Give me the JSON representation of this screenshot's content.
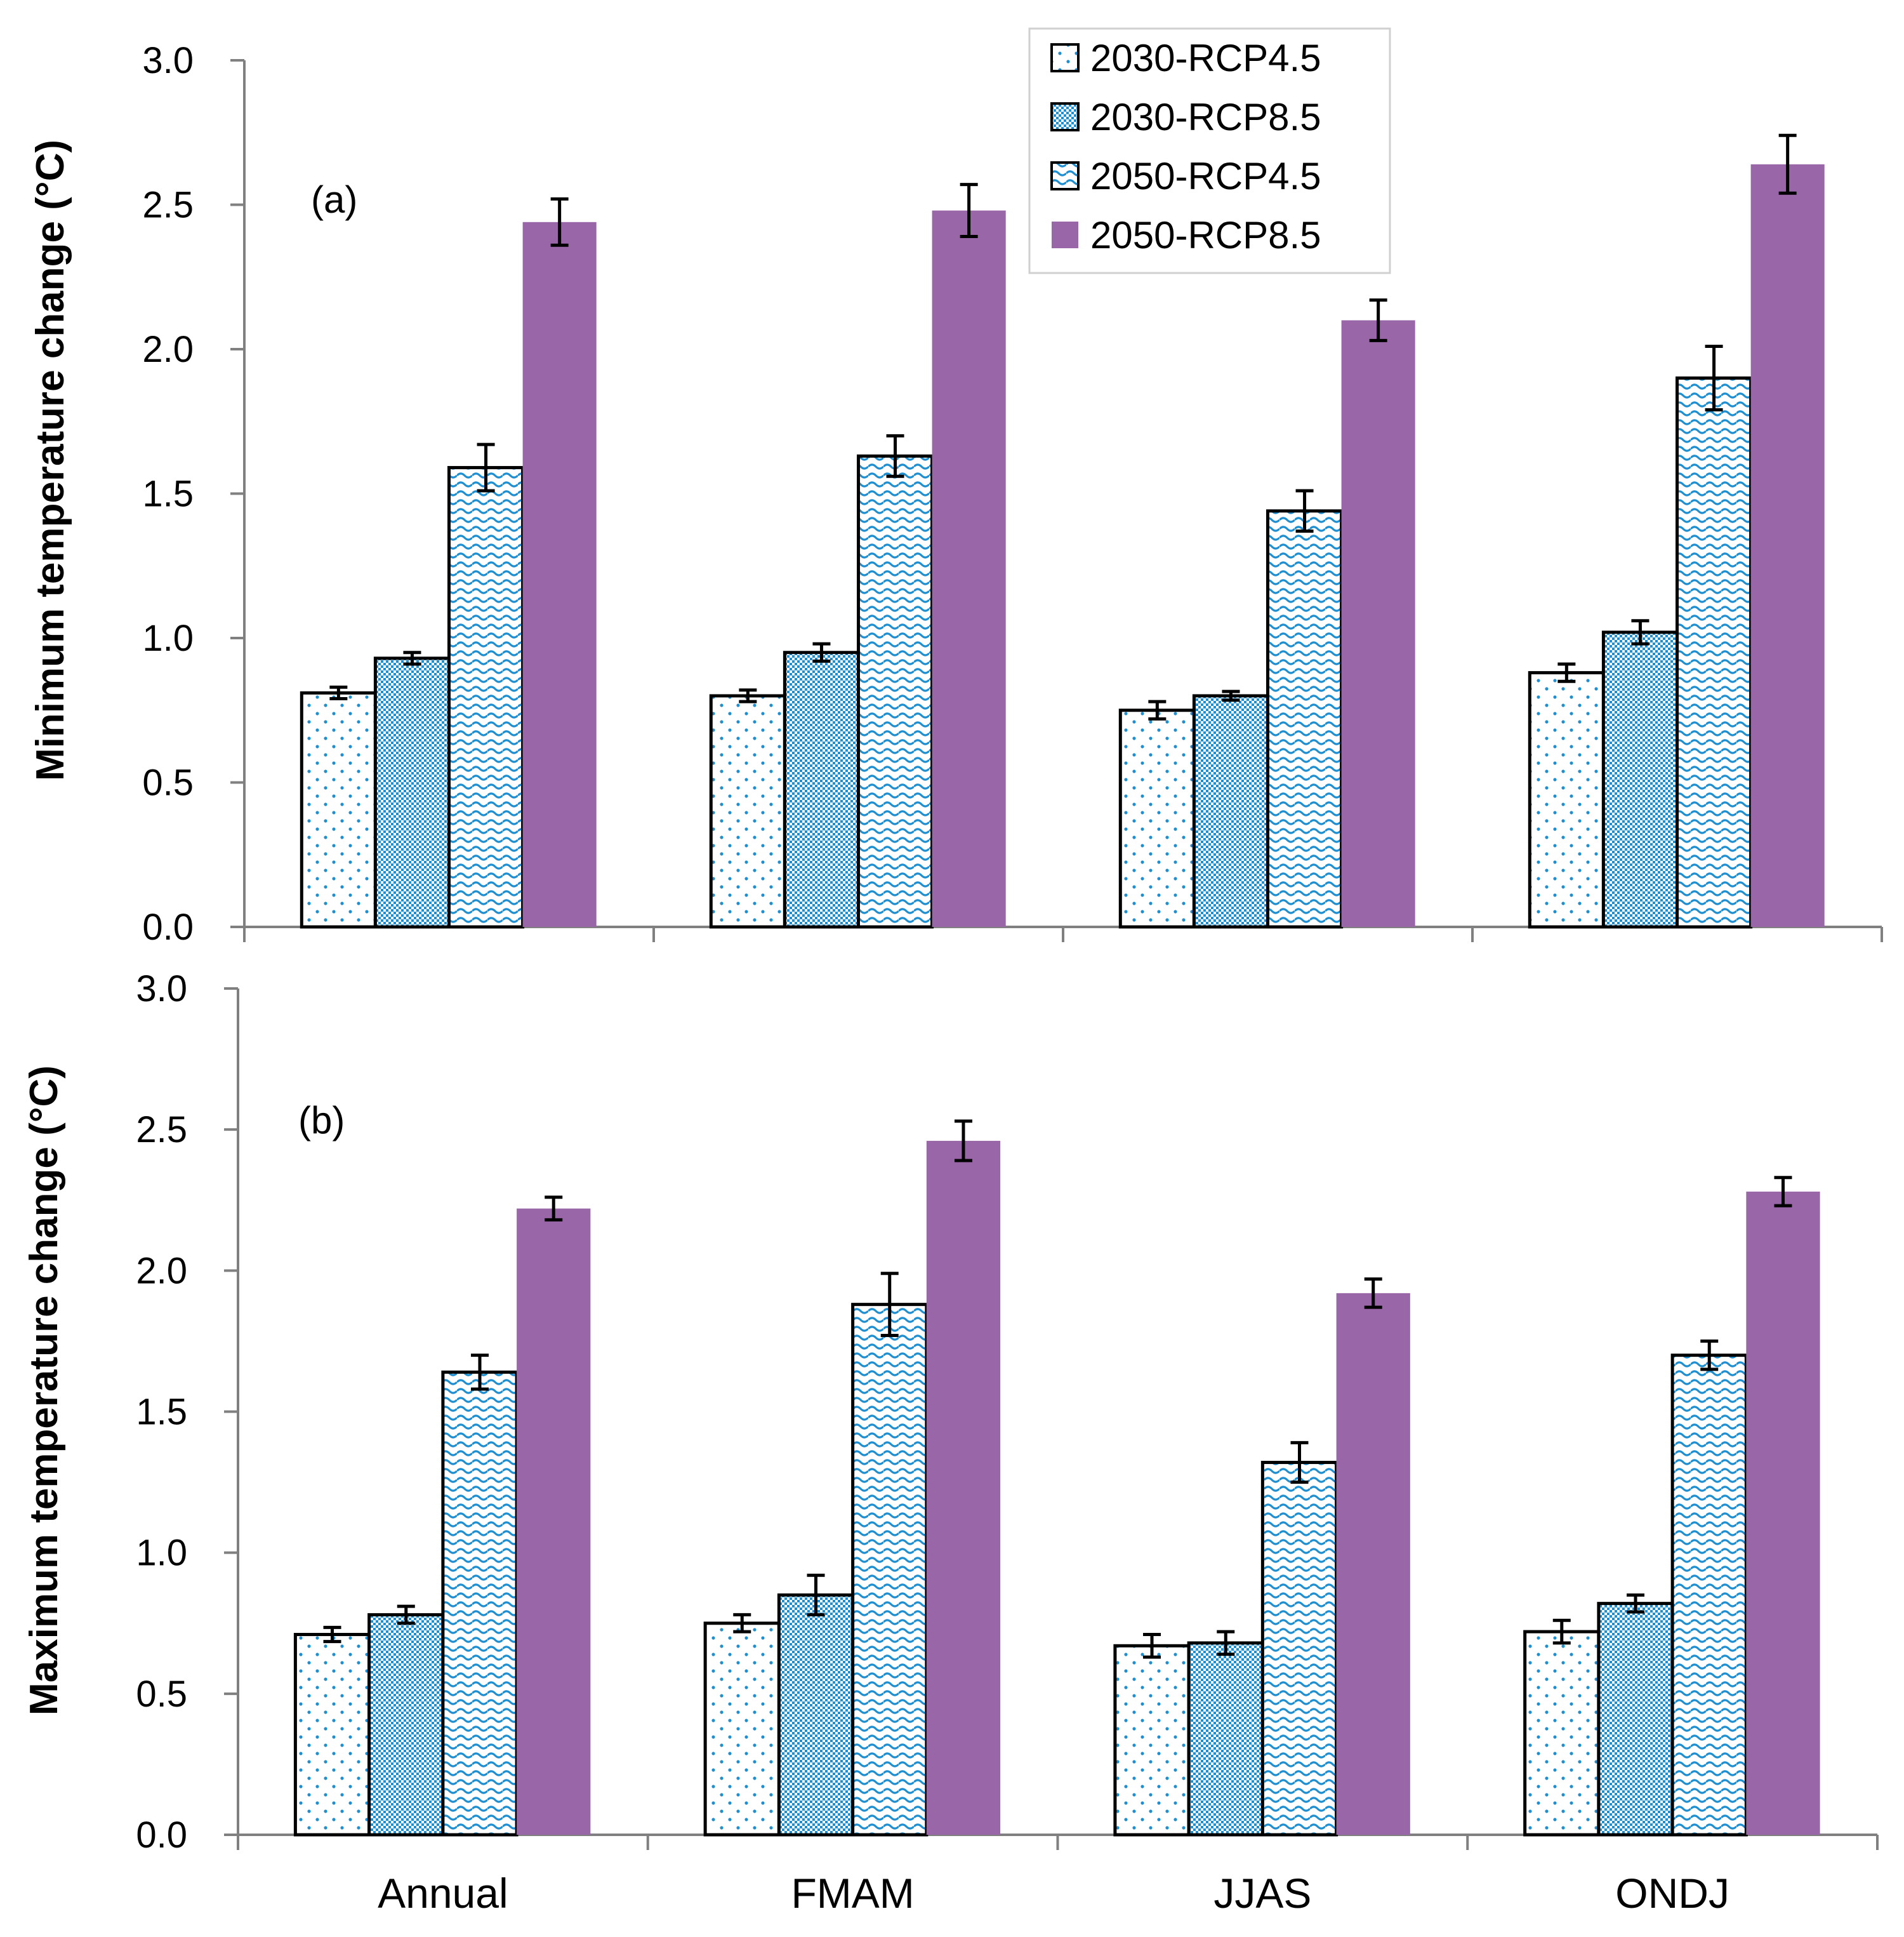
{
  "chart_data": [
    {
      "type": "bar",
      "panel_label": "(a)",
      "ylabel": "Minimum temperature change (°C)",
      "ylim": [
        0,
        3.0
      ],
      "yticks": [
        "0.0",
        "0.5",
        "1.0",
        "1.5",
        "2.0",
        "2.5",
        "3.0"
      ],
      "categories": [
        "Annual",
        "FMAM",
        "JJAS",
        "ONDJ"
      ],
      "show_category_labels": false,
      "series": [
        {
          "name": "2030-RCP4.5",
          "values": [
            0.81,
            0.8,
            0.75,
            0.88
          ],
          "errors": [
            0.02,
            0.02,
            0.03,
            0.03
          ]
        },
        {
          "name": "2030-RCP8.5",
          "values": [
            0.93,
            0.95,
            0.8,
            1.02
          ],
          "errors": [
            0.02,
            0.03,
            0.015,
            0.04
          ]
        },
        {
          "name": "2050-RCP4.5",
          "values": [
            1.59,
            1.63,
            1.44,
            1.9
          ],
          "errors": [
            0.08,
            0.07,
            0.07,
            0.11
          ]
        },
        {
          "name": "2050-RCP8.5",
          "values": [
            2.44,
            2.48,
            2.1,
            2.64
          ],
          "errors": [
            0.08,
            0.09,
            0.07,
            0.1
          ]
        }
      ]
    },
    {
      "type": "bar",
      "panel_label": "(b)",
      "ylabel": "Maximum temperature change (°C)",
      "ylim": [
        0,
        3.0
      ],
      "yticks": [
        "0.0",
        "0.5",
        "1.0",
        "1.5",
        "2.0",
        "2.5",
        "3.0"
      ],
      "categories": [
        "Annual",
        "FMAM",
        "JJAS",
        "ONDJ"
      ],
      "show_category_labels": true,
      "series": [
        {
          "name": "2030-RCP4.5",
          "values": [
            0.71,
            0.75,
            0.67,
            0.72
          ],
          "errors": [
            0.025,
            0.03,
            0.04,
            0.04
          ]
        },
        {
          "name": "2030-RCP8.5",
          "values": [
            0.78,
            0.85,
            0.68,
            0.82
          ],
          "errors": [
            0.03,
            0.07,
            0.04,
            0.03
          ]
        },
        {
          "name": "2050-RCP4.5",
          "values": [
            1.64,
            1.88,
            1.32,
            1.7
          ],
          "errors": [
            0.06,
            0.11,
            0.07,
            0.05
          ]
        },
        {
          "name": "2050-RCP8.5",
          "values": [
            2.22,
            2.46,
            1.92,
            2.28
          ],
          "errors": [
            0.04,
            0.07,
            0.05,
            0.05
          ]
        }
      ]
    }
  ],
  "legend": {
    "entries": [
      "2030-RCP4.5",
      "2030-RCP8.5",
      "2050-RCP4.5",
      "2050-RCP8.5"
    ]
  },
  "colors": {
    "axis": "#808080",
    "bar_outline": "#000000",
    "pattern_blue": "#1e8fd0",
    "pattern_blue_dark": "#1f6fa0",
    "purple": "#9966a8",
    "error_bar": "#000000"
  }
}
